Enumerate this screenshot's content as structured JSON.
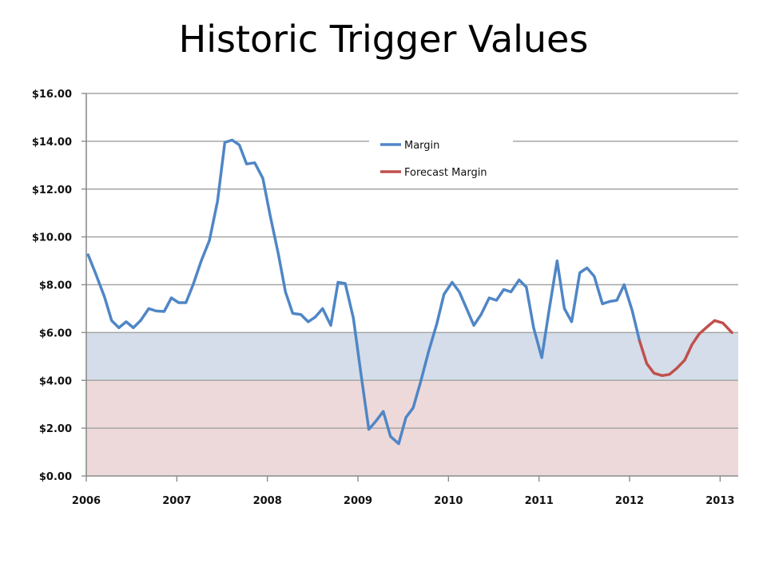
{
  "title": "Historic Trigger Values",
  "chart_data": {
    "type": "line",
    "title": "Historic Trigger Values",
    "xlabel": "",
    "ylabel": "",
    "x_ticks": [
      "2006",
      "2007",
      "2008",
      "2009",
      "2010",
      "2011",
      "2012",
      "2013"
    ],
    "xlim": [
      2006,
      2013.2
    ],
    "y_ticks": [
      "$0.00",
      "$2.00",
      "$4.00",
      "$6.00",
      "$8.00",
      "$10.00",
      "$12.00",
      "$14.00",
      "$16.00"
    ],
    "ylim": [
      0,
      16
    ],
    "grid": true,
    "bands": [
      {
        "from": 0,
        "to": 4,
        "color": "#eed9da"
      },
      {
        "from": 4,
        "to": 6,
        "color": "#d4dde9"
      }
    ],
    "legend_position": "top-center",
    "series": [
      {
        "name": "Margin",
        "color": "#4f86c6",
        "points": [
          [
            2006.02,
            9.25
          ],
          [
            2006.1,
            8.5
          ],
          [
            2006.2,
            7.5
          ],
          [
            2006.28,
            6.5
          ],
          [
            2006.36,
            6.2
          ],
          [
            2006.44,
            6.45
          ],
          [
            2006.52,
            6.2
          ],
          [
            2006.6,
            6.5
          ],
          [
            2006.69,
            7.0
          ],
          [
            2006.77,
            6.9
          ],
          [
            2006.86,
            6.88
          ],
          [
            2006.94,
            7.45
          ],
          [
            2007.02,
            7.25
          ],
          [
            2007.1,
            7.25
          ],
          [
            2007.18,
            8.0
          ],
          [
            2007.27,
            9.0
          ],
          [
            2007.36,
            9.85
          ],
          [
            2007.45,
            11.5
          ],
          [
            2007.53,
            13.95
          ],
          [
            2007.61,
            14.05
          ],
          [
            2007.69,
            13.85
          ],
          [
            2007.77,
            13.05
          ],
          [
            2007.86,
            13.1
          ],
          [
            2007.95,
            12.45
          ],
          [
            2008.03,
            10.9
          ],
          [
            2008.12,
            9.3
          ],
          [
            2008.2,
            7.7
          ],
          [
            2008.28,
            6.8
          ],
          [
            2008.37,
            6.75
          ],
          [
            2008.45,
            6.45
          ],
          [
            2008.53,
            6.65
          ],
          [
            2008.61,
            7.0
          ],
          [
            2008.7,
            6.3
          ],
          [
            2008.78,
            8.1
          ],
          [
            2008.86,
            8.05
          ],
          [
            2008.95,
            6.6
          ],
          [
            2009.04,
            4.1
          ],
          [
            2009.12,
            1.95
          ],
          [
            2009.2,
            2.3
          ],
          [
            2009.28,
            2.7
          ],
          [
            2009.36,
            1.65
          ],
          [
            2009.45,
            1.35
          ],
          [
            2009.53,
            2.45
          ],
          [
            2009.61,
            2.85
          ],
          [
            2009.69,
            3.9
          ],
          [
            2009.78,
            5.2
          ],
          [
            2009.87,
            6.35
          ],
          [
            2009.95,
            7.6
          ],
          [
            2010.04,
            8.1
          ],
          [
            2010.12,
            7.7
          ],
          [
            2010.2,
            7.0
          ],
          [
            2010.28,
            6.3
          ],
          [
            2010.36,
            6.75
          ],
          [
            2010.45,
            7.45
          ],
          [
            2010.53,
            7.35
          ],
          [
            2010.61,
            7.8
          ],
          [
            2010.69,
            7.7
          ],
          [
            2010.78,
            8.2
          ],
          [
            2010.86,
            7.9
          ],
          [
            2010.94,
            6.2
          ],
          [
            2011.03,
            4.95
          ],
          [
            2011.11,
            6.9
          ],
          [
            2011.2,
            9.0
          ],
          [
            2011.28,
            7.0
          ],
          [
            2011.36,
            6.45
          ],
          [
            2011.45,
            8.5
          ],
          [
            2011.53,
            8.7
          ],
          [
            2011.61,
            8.35
          ],
          [
            2011.7,
            7.2
          ],
          [
            2011.78,
            7.3
          ],
          [
            2011.86,
            7.35
          ],
          [
            2011.94,
            8.0
          ],
          [
            2012.03,
            6.9
          ],
          [
            2012.11,
            5.65
          ]
        ]
      },
      {
        "name": "Forecast Margin",
        "color": "#c0504d",
        "points": [
          [
            2012.11,
            5.65
          ],
          [
            2012.19,
            4.7
          ],
          [
            2012.27,
            4.3
          ],
          [
            2012.36,
            4.2
          ],
          [
            2012.44,
            4.25
          ],
          [
            2012.52,
            4.5
          ],
          [
            2012.61,
            4.85
          ],
          [
            2012.69,
            5.5
          ],
          [
            2012.77,
            5.95
          ],
          [
            2012.86,
            6.25
          ],
          [
            2012.94,
            6.5
          ],
          [
            2013.03,
            6.4
          ],
          [
            2013.13,
            6.0
          ]
        ]
      }
    ]
  }
}
